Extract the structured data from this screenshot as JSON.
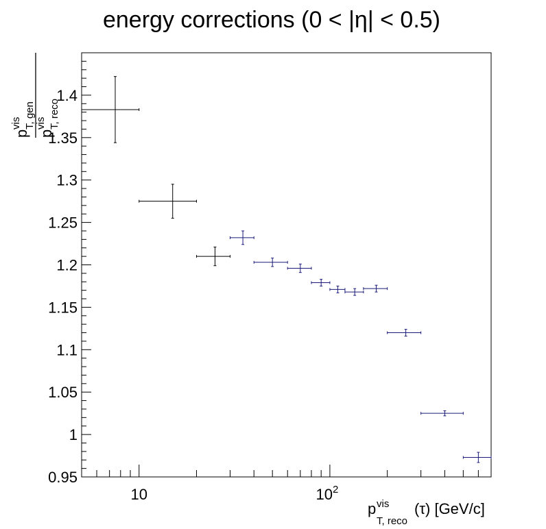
{
  "chart_data": {
    "type": "scatter",
    "title": "energy corrections (0 < |η| < 0.5)",
    "xlabel": {
      "base": "p",
      "sup": "vis",
      "sub": "T, reco",
      "tail": "(τ) [GeV/c]"
    },
    "ylabel": {
      "numerator": {
        "base": "p",
        "sup": "vis",
        "sub": "T, gen"
      },
      "denominator": {
        "base": "p",
        "sup": "vis",
        "sub": "T, reco"
      }
    },
    "x_scale": "log",
    "xlim": [
      5,
      700
    ],
    "ylim": [
      0.95,
      1.45
    ],
    "y_ticks": [
      "0.95",
      "1",
      "1.05",
      "1.1",
      "1.15",
      "1.2",
      "1.25",
      "1.3",
      "1.35",
      "1.4"
    ],
    "x_tick_labels": [
      {
        "value": 10,
        "base": "10",
        "exp": ""
      },
      {
        "value": 100,
        "base": "10",
        "exp": "2"
      }
    ],
    "grid": false,
    "series": [
      {
        "color": "#000000",
        "points": [
          {
            "x": 7.5,
            "y": 1.383,
            "xlow": 5,
            "xhigh": 10,
            "ylow": 1.344,
            "yhigh": 1.422
          },
          {
            "x": 15,
            "y": 1.275,
            "xlow": 10,
            "xhigh": 20,
            "ylow": 1.255,
            "yhigh": 1.295
          },
          {
            "x": 25,
            "y": 1.21,
            "xlow": 20,
            "xhigh": 30,
            "ylow": 1.199,
            "yhigh": 1.221
          }
        ]
      },
      {
        "color": "#1a1a7a",
        "points": [
          {
            "x": 35,
            "y": 1.232,
            "xlow": 30,
            "xhigh": 40,
            "ylow": 1.224,
            "yhigh": 1.24
          },
          {
            "x": 50,
            "y": 1.203,
            "xlow": 40,
            "xhigh": 60,
            "ylow": 1.198,
            "yhigh": 1.208
          },
          {
            "x": 70,
            "y": 1.196,
            "xlow": 60,
            "xhigh": 80,
            "ylow": 1.191,
            "yhigh": 1.201
          },
          {
            "x": 90,
            "y": 1.179,
            "xlow": 80,
            "xhigh": 100,
            "ylow": 1.175,
            "yhigh": 1.183
          },
          {
            "x": 110,
            "y": 1.171,
            "xlow": 100,
            "xhigh": 120,
            "ylow": 1.167,
            "yhigh": 1.175
          },
          {
            "x": 135,
            "y": 1.168,
            "xlow": 120,
            "xhigh": 150,
            "ylow": 1.164,
            "yhigh": 1.172
          },
          {
            "x": 175,
            "y": 1.172,
            "xlow": 150,
            "xhigh": 200,
            "ylow": 1.168,
            "yhigh": 1.176
          },
          {
            "x": 250,
            "y": 1.12,
            "xlow": 200,
            "xhigh": 300,
            "ylow": 1.116,
            "yhigh": 1.124
          },
          {
            "x": 400,
            "y": 1.025,
            "xlow": 300,
            "xhigh": 500,
            "ylow": 1.022,
            "yhigh": 1.028
          },
          {
            "x": 600,
            "y": 0.973,
            "xlow": 500,
            "xhigh": 700,
            "ylow": 0.967,
            "yhigh": 0.979
          }
        ]
      }
    ]
  }
}
